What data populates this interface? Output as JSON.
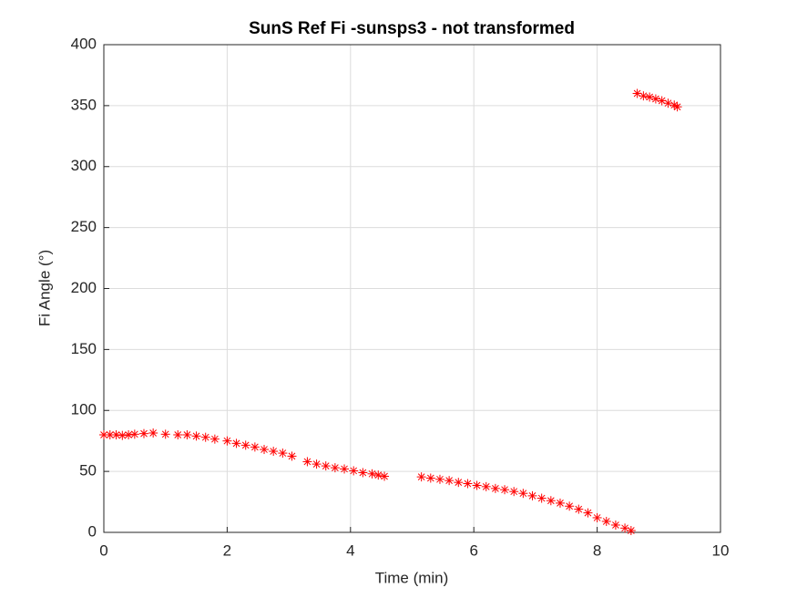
{
  "chart_data": {
    "type": "scatter",
    "title": "SunS Ref Fi -sunsps3 - not transformed",
    "x_label": "Time (min)",
    "y_label": "Fi Angle (°)",
    "xlim": [
      0,
      10
    ],
    "xticks": [
      0,
      2,
      4,
      6,
      8,
      10
    ],
    "ylim": [
      0,
      400
    ],
    "yticks": [
      0,
      50,
      100,
      150,
      200,
      250,
      300,
      350,
      400
    ],
    "grid": true,
    "color": "#ff0000",
    "marker": "asterisk",
    "x": [
      0,
      0.1,
      0.2,
      0.3,
      0.4,
      0.5,
      0.65,
      0.8,
      1.0,
      1.2,
      1.35,
      1.5,
      1.65,
      1.8,
      2.0,
      2.15,
      2.3,
      2.45,
      2.6,
      2.75,
      2.9,
      3.05,
      3.3,
      3.45,
      3.6,
      3.75,
      3.9,
      4.05,
      4.2,
      4.35,
      4.45,
      4.55,
      5.15,
      5.3,
      5.45,
      5.6,
      5.75,
      5.9,
      6.05,
      6.2,
      6.35,
      6.5,
      6.65,
      6.8,
      6.95,
      7.1,
      7.25,
      7.4,
      7.55,
      7.7,
      7.85,
      8.0,
      8.15,
      8.3,
      8.45,
      8.55,
      8.65,
      8.75,
      8.85,
      8.95,
      9.05,
      9.15,
      9.25,
      9.3
    ],
    "values": [
      80,
      80,
      80,
      79.5,
      80,
      80.5,
      81,
      81.5,
      80.5,
      80,
      80,
      79,
      78,
      76.5,
      75,
      73,
      71.5,
      70,
      68,
      66.5,
      65,
      62.5,
      58,
      56,
      54.5,
      53,
      52,
      50.5,
      49,
      48,
      47,
      46,
      45.5,
      44.5,
      43.5,
      42.5,
      41,
      40,
      38.5,
      37.5,
      36,
      35,
      33.5,
      32,
      30,
      28,
      26,
      24,
      21.5,
      19,
      16,
      12,
      9,
      6,
      3.5,
      1.5,
      360,
      358,
      357,
      355.5,
      354,
      352,
      350.5,
      349
    ]
  }
}
